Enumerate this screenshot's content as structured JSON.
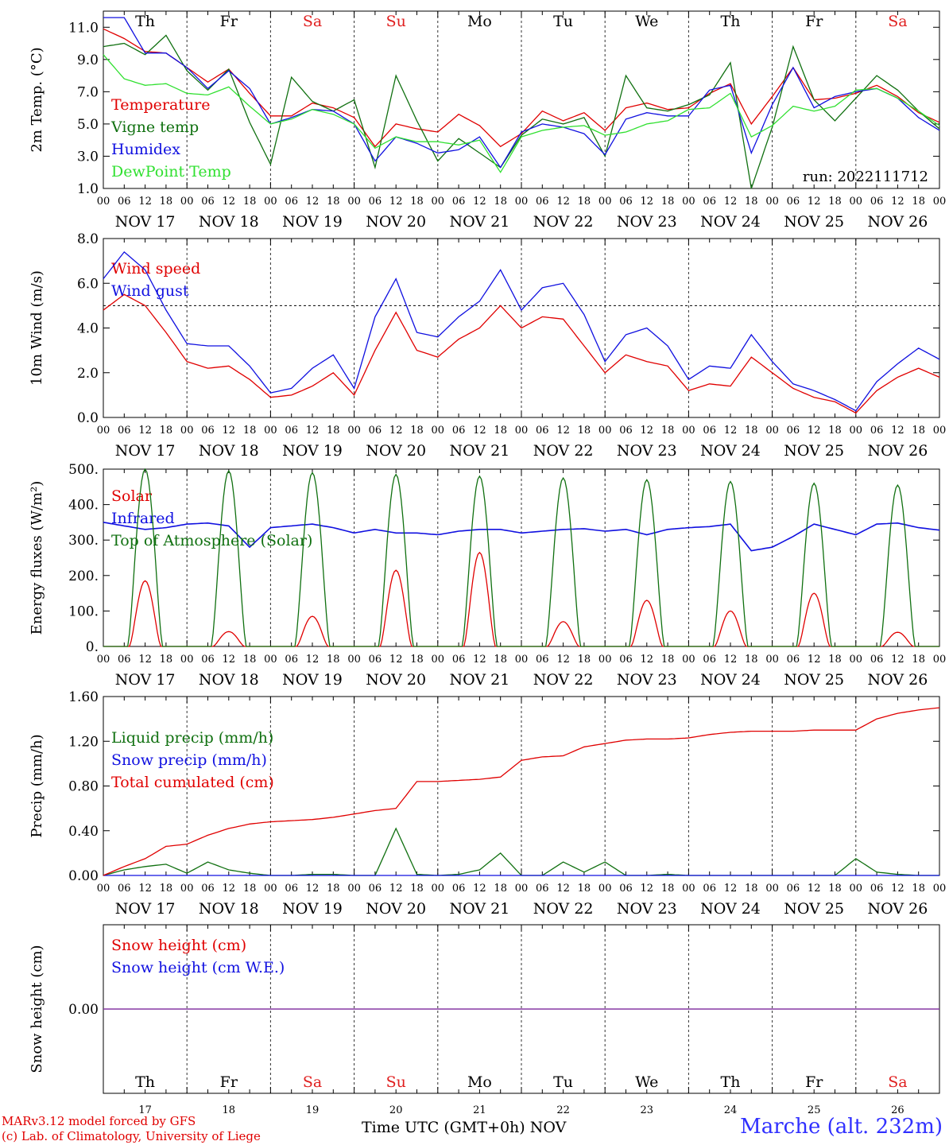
{
  "footer": {
    "credit_line1": "MARv3.12 model forced by GFS",
    "credit_line2": "(c) Lab. of Climatology, University of Liege",
    "xaxis_label": "Time UTC (GMT+0h) NOV",
    "station": "Marche (alt. 232m)"
  },
  "colors": {
    "red": "#e00000",
    "green": "#107010",
    "blue": "#1010e0",
    "lightgreen": "#30e030",
    "purple": "#8030a0",
    "weekend": "#e02020"
  },
  "days": {
    "weekday_labels": [
      "Th",
      "Fr",
      "Sa",
      "Su",
      "Mo",
      "Tu",
      "We",
      "Th",
      "Fr",
      "Sa"
    ],
    "weekend_flags": [
      false,
      false,
      true,
      true,
      false,
      false,
      false,
      false,
      false,
      true
    ],
    "date_labels": [
      "NOV 17",
      "NOV 18",
      "NOV 19",
      "NOV 20",
      "NOV 21",
      "NOV 22",
      "NOV 23",
      "NOV 24",
      "NOV 25",
      "NOV 26"
    ],
    "day_numbers": [
      "17",
      "18",
      "19",
      "20",
      "21",
      "22",
      "23",
      "24",
      "25",
      "26"
    ],
    "hour_labels": [
      "00",
      "06",
      "12",
      "18"
    ],
    "final_hour_label": "00"
  },
  "chart_data": [
    {
      "type": "line",
      "ylabel": "2m Temp. (°C)",
      "ylim": [
        1.0,
        12.0
      ],
      "yticks": [
        "1.0",
        "3.0",
        "5.0",
        "7.0",
        "9.0",
        "11.0"
      ],
      "ytick_values": [
        1,
        3,
        5,
        7,
        9,
        11
      ],
      "annotation": "run: 2022111712",
      "x_hours": [
        0,
        6,
        12,
        18,
        24,
        30,
        36,
        42,
        48,
        54,
        60,
        66,
        72,
        78,
        84,
        90,
        96,
        102,
        108,
        114,
        120,
        126,
        132,
        138,
        144,
        150,
        156,
        162,
        168,
        174,
        180,
        186,
        192,
        198,
        204,
        210,
        216,
        222,
        228,
        234,
        240
      ],
      "series": [
        {
          "name": "Temperature",
          "color": "red",
          "values": [
            10.9,
            10.3,
            9.5,
            9.4,
            8.5,
            7.6,
            8.4,
            6.9,
            5.5,
            5.5,
            6.3,
            6.0,
            5.4,
            3.6,
            5.0,
            4.7,
            4.5,
            5.6,
            4.9,
            3.6,
            4.4,
            5.8,
            5.2,
            5.7,
            4.6,
            6.0,
            6.3,
            5.9,
            6.0,
            6.9,
            7.5,
            5.0,
            6.7,
            8.5,
            6.5,
            6.6,
            6.9,
            7.4,
            6.7,
            5.7,
            5.1
          ]
        },
        {
          "name": "Vigne temp",
          "color": "green",
          "values": [
            9.8,
            10.0,
            9.3,
            10.5,
            8.3,
            7.1,
            8.4,
            5.1,
            2.5,
            7.9,
            6.4,
            5.8,
            6.5,
            2.3,
            8.0,
            5.2,
            2.7,
            4.1,
            3.2,
            2.3,
            4.3,
            5.3,
            5.0,
            5.4,
            3.0,
            8.0,
            6.0,
            5.8,
            6.2,
            6.8,
            8.8,
            1.0,
            4.8,
            9.8,
            6.5,
            5.2,
            6.6,
            8.0,
            7.1,
            5.8,
            4.7
          ]
        },
        {
          "name": "Humidex",
          "color": "blue",
          "values": [
            11.6,
            11.6,
            9.4,
            9.4,
            8.5,
            7.2,
            8.3,
            7.2,
            5.0,
            5.4,
            5.9,
            5.8,
            5.0,
            2.7,
            4.2,
            3.8,
            3.2,
            3.4,
            4.2,
            2.3,
            4.5,
            5.0,
            4.8,
            4.4,
            3.1,
            5.3,
            5.7,
            5.5,
            5.5,
            7.1,
            7.4,
            3.2,
            6.2,
            8.5,
            6.0,
            6.7,
            7.0,
            7.2,
            6.6,
            5.4,
            4.6
          ]
        },
        {
          "name": "DewPoint Temp",
          "color": "lightgreen",
          "values": [
            9.3,
            7.8,
            7.4,
            7.5,
            6.9,
            6.8,
            7.3,
            6.1,
            5.0,
            5.3,
            5.9,
            5.6,
            5.0,
            3.5,
            4.2,
            3.9,
            3.9,
            3.7,
            4.0,
            2.0,
            4.2,
            4.6,
            4.8,
            4.9,
            4.3,
            4.5,
            5.0,
            5.2,
            5.9,
            6.0,
            6.9,
            4.2,
            4.9,
            6.1,
            5.8,
            6.1,
            7.1,
            7.2,
            6.6,
            5.8,
            4.9
          ]
        }
      ]
    },
    {
      "type": "line",
      "ylabel": "10m Wind (m/s)",
      "ylim": [
        0.0,
        8.0
      ],
      "yticks": [
        "0.0",
        "2.0",
        "4.0",
        "6.0",
        "8.0"
      ],
      "ytick_values": [
        0,
        2,
        4,
        6,
        8
      ],
      "reference_line": 5.0,
      "x_hours": [
        0,
        6,
        12,
        18,
        24,
        30,
        36,
        42,
        48,
        54,
        60,
        66,
        72,
        78,
        84,
        90,
        96,
        102,
        108,
        114,
        120,
        126,
        132,
        138,
        144,
        150,
        156,
        162,
        168,
        174,
        180,
        186,
        192,
        198,
        204,
        210,
        216,
        222,
        228,
        234,
        240
      ],
      "series": [
        {
          "name": "Wind speed",
          "color": "red",
          "values": [
            4.8,
            5.5,
            5.0,
            3.8,
            2.5,
            2.2,
            2.3,
            1.7,
            0.9,
            1.0,
            1.4,
            2.0,
            1.0,
            3.0,
            4.7,
            3.0,
            2.7,
            3.5,
            4.0,
            5.0,
            4.0,
            4.5,
            4.4,
            3.2,
            2.0,
            2.8,
            2.5,
            2.3,
            1.2,
            1.5,
            1.4,
            2.7,
            2.0,
            1.3,
            0.9,
            0.7,
            0.2,
            1.2,
            1.8,
            2.2,
            1.8
          ]
        },
        {
          "name": "Wind gust",
          "color": "blue",
          "values": [
            6.2,
            7.4,
            6.6,
            4.8,
            3.3,
            3.2,
            3.2,
            2.3,
            1.1,
            1.3,
            2.2,
            2.8,
            1.3,
            4.5,
            6.2,
            3.8,
            3.6,
            4.5,
            5.2,
            6.6,
            4.8,
            5.8,
            6.0,
            4.6,
            2.5,
            3.7,
            4.0,
            3.2,
            1.7,
            2.3,
            2.2,
            3.7,
            2.5,
            1.5,
            1.2,
            0.8,
            0.3,
            1.6,
            2.4,
            3.1,
            2.6
          ]
        }
      ]
    },
    {
      "type": "line",
      "ylabel": "Energy fluxes (W/m²)",
      "ylim": [
        0,
        500
      ],
      "yticks": [
        "0.",
        "100.",
        "200.",
        "300.",
        "400.",
        "500."
      ],
      "ytick_values": [
        0,
        100,
        200,
        300,
        400,
        500
      ],
      "x_hours": [
        0,
        6,
        12,
        18,
        24,
        30,
        36,
        42,
        48,
        54,
        60,
        66,
        72,
        78,
        84,
        90,
        96,
        102,
        108,
        114,
        120,
        126,
        132,
        138,
        144,
        150,
        156,
        162,
        168,
        174,
        180,
        186,
        192,
        198,
        204,
        210,
        216,
        222,
        228,
        234,
        240
      ],
      "series": [
        {
          "name": "Solar",
          "color": "red",
          "daily_peaks": [
            185,
            42,
            85,
            215,
            265,
            70,
            130,
            100,
            150,
            40
          ],
          "peak_hour_utc": 12,
          "daylight_hours": [
            7.5,
            16.5
          ]
        },
        {
          "name": "Infrared",
          "color": "blue",
          "values": [
            350,
            340,
            330,
            335,
            345,
            348,
            340,
            280,
            335,
            340,
            345,
            335,
            320,
            330,
            320,
            320,
            315,
            325,
            330,
            330,
            320,
            325,
            330,
            332,
            325,
            330,
            315,
            330,
            335,
            338,
            345,
            270,
            280,
            310,
            345,
            330,
            315,
            345,
            348,
            335,
            328
          ]
        },
        {
          "name": "Top of Atmosphere (Solar)",
          "color": "green",
          "daily_peaks": [
            500,
            495,
            490,
            485,
            480,
            475,
            470,
            465,
            460,
            455
          ],
          "peak_hour_utc": 12,
          "daylight_hours": [
            7,
            17
          ]
        }
      ]
    },
    {
      "type": "line",
      "ylabel": "Precip (mm/h)",
      "ylim": [
        0.0,
        1.6
      ],
      "yticks": [
        "0.00",
        "0.40",
        "0.80",
        "1.20",
        "1.60"
      ],
      "ytick_values": [
        0,
        0.4,
        0.8,
        1.2,
        1.6
      ],
      "x_hours": [
        0,
        6,
        12,
        18,
        24,
        30,
        36,
        42,
        48,
        54,
        60,
        66,
        72,
        78,
        84,
        90,
        96,
        102,
        108,
        114,
        120,
        126,
        132,
        138,
        144,
        150,
        156,
        162,
        168,
        174,
        180,
        186,
        192,
        198,
        204,
        210,
        216,
        222,
        228,
        234,
        240
      ],
      "series": [
        {
          "name": "Liquid precip (mm/h)",
          "color": "green",
          "values": [
            0.0,
            0.05,
            0.08,
            0.1,
            0.02,
            0.12,
            0.05,
            0.02,
            0.0,
            0.0,
            0.01,
            0.01,
            0.0,
            0.0,
            0.42,
            0.01,
            0.0,
            0.01,
            0.05,
            0.2,
            0.0,
            0.0,
            0.12,
            0.03,
            0.12,
            0.0,
            0.0,
            0.01,
            0.0,
            0.0,
            0.0,
            0.0,
            0.0,
            0.0,
            0.0,
            0.0,
            0.15,
            0.03,
            0.01,
            0.0,
            0.0
          ]
        },
        {
          "name": "Snow precip (mm/h)",
          "color": "blue",
          "values": [
            0,
            0,
            0,
            0,
            0,
            0,
            0,
            0,
            0,
            0,
            0,
            0,
            0,
            0,
            0,
            0,
            0,
            0,
            0,
            0,
            0,
            0,
            0,
            0,
            0,
            0,
            0,
            0,
            0,
            0,
            0,
            0,
            0,
            0,
            0,
            0,
            0,
            0,
            0,
            0,
            0
          ]
        },
        {
          "name": "Total cumulated (cm)",
          "color": "red",
          "values": [
            0.0,
            0.08,
            0.15,
            0.26,
            0.28,
            0.36,
            0.42,
            0.46,
            0.48,
            0.49,
            0.5,
            0.52,
            0.55,
            0.58,
            0.6,
            0.84,
            0.84,
            0.85,
            0.86,
            0.88,
            1.03,
            1.06,
            1.07,
            1.15,
            1.18,
            1.21,
            1.22,
            1.22,
            1.23,
            1.26,
            1.28,
            1.29,
            1.29,
            1.29,
            1.3,
            1.3,
            1.3,
            1.4,
            1.45,
            1.48,
            1.5
          ]
        }
      ]
    },
    {
      "type": "line",
      "ylabel": "Snow height (cm)",
      "ylim": [
        -1,
        1
      ],
      "yticks": [
        "0.00"
      ],
      "ytick_values": [
        0
      ],
      "x_hours": [
        0,
        240
      ],
      "series": [
        {
          "name": "Snow height (cm)",
          "color": "red",
          "values": [
            0,
            0
          ]
        },
        {
          "name": "Snow height (cm W.E.)",
          "color": "blue",
          "values": [
            0,
            0
          ]
        }
      ]
    }
  ]
}
